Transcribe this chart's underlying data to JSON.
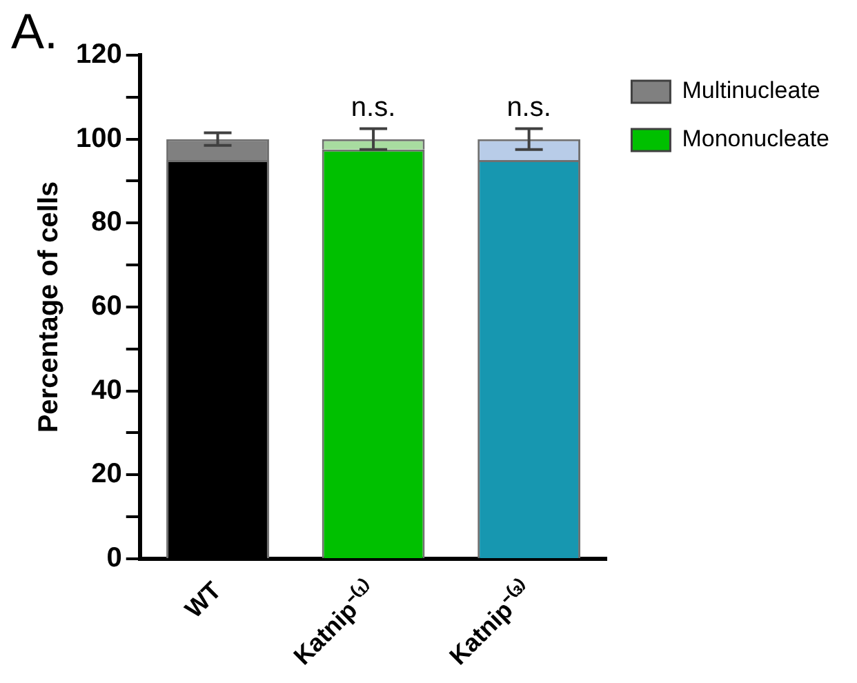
{
  "chart_data": {
    "type": "bar",
    "title": "A.",
    "ylabel": "Percentage of cells",
    "categories": [
      "WT",
      "Katnip⁻⁽¹⁾",
      "Katnip⁻⁽³⁾"
    ],
    "stacked": true,
    "series": [
      {
        "name": "Mononucleate",
        "color": "#00c000",
        "colors": [
          "#000000",
          "#00c000",
          "#1797b0"
        ],
        "values": [
          95,
          97.5,
          95
        ]
      },
      {
        "name": "Multinucleate",
        "color": "#808080",
        "colors": [
          "#808080",
          "#a8dca0",
          "#b8cce8"
        ],
        "values": [
          5,
          2.5,
          5
        ],
        "errors": [
          1.5,
          2.5,
          2.5
        ]
      }
    ],
    "ylim": [
      0,
      120
    ],
    "yticks": [
      0,
      {
        "value": 10,
        "label": null
      },
      20,
      {
        "value": 30,
        "label": null
      },
      40,
      {
        "value": 50,
        "label": null
      },
      60,
      {
        "value": 70,
        "label": null
      },
      80,
      {
        "value": 90,
        "label": null
      },
      100,
      {
        "value": 110,
        "label": null
      },
      120
    ],
    "grid": false,
    "legend": "right",
    "annotations": [
      {
        "text": "n.s.",
        "x": "Katnip⁻⁽¹⁾",
        "y": 104
      },
      {
        "text": "n.s.",
        "x": "Katnip⁻⁽³⁾",
        "y": 104
      }
    ]
  }
}
